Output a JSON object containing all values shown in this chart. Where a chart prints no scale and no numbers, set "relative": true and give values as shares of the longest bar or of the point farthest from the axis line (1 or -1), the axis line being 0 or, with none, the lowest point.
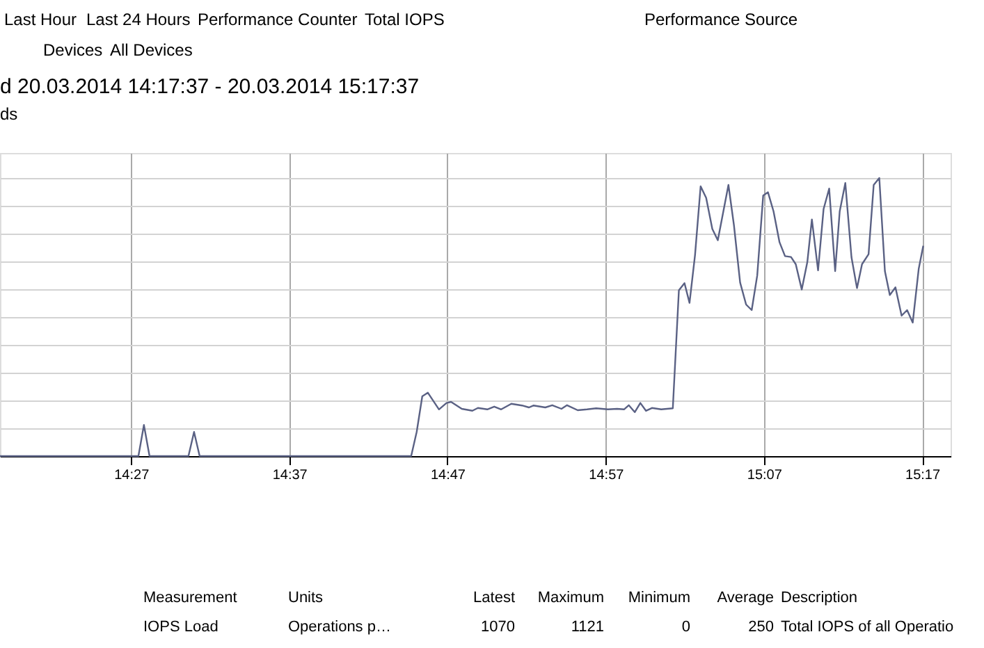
{
  "chart_data": {
    "type": "line",
    "title": "d 20.03.2014 14:17:37 - 20.03.2014 15:17:37",
    "subtitle": "ds",
    "relative": true,
    "grid": true,
    "marker": "none",
    "line_style": "solid",
    "xlim": [
      14.312,
      15.3133
    ],
    "xticks": [
      {
        "value": 14.45,
        "label": "14:27"
      },
      {
        "value": 14.6167,
        "label": "14:37"
      },
      {
        "value": 14.7833,
        "label": "14:47"
      },
      {
        "value": 14.95,
        "label": "14:57"
      },
      {
        "value": 15.1167,
        "label": "15:07"
      },
      {
        "value": 15.2833,
        "label": "15:17"
      }
    ],
    "annotations": [
      "Last Hour",
      "Last 24 Hours",
      "Performance Counter",
      "Total IOPS",
      "Performance Source",
      "Devices",
      "All Devices",
      "Measurement",
      "Units",
      "Latest",
      "Maximum",
      "Minimum",
      "Average",
      "Description",
      "IOPS Load",
      "Operations p…",
      "1070",
      "1121",
      "0",
      "250",
      "Total IOPS of all Operatio"
    ],
    "series": [
      {
        "color": "#5a6184",
        "x": [
          14.312,
          14.4578,
          14.4636,
          14.4695,
          14.5105,
          14.5164,
          14.5223,
          14.7451,
          14.7509,
          14.7568,
          14.7627,
          14.7744,
          14.7823,
          14.7871,
          14.7984,
          14.8096,
          14.8154,
          14.8253,
          14.8326,
          14.8399,
          14.8506,
          14.8619,
          14.8692,
          14.8741,
          14.8864,
          14.8937,
          14.9034,
          14.9093,
          14.9205,
          14.9304,
          14.94,
          14.9523,
          14.962,
          14.9693,
          14.9743,
          14.9806,
          14.9865,
          14.9924,
          14.9987,
          15.0085,
          15.0207,
          15.0271,
          15.033,
          15.0383,
          15.0441,
          15.05,
          15.0558,
          15.0623,
          15.0681,
          15.0744,
          15.0793,
          15.0851,
          15.0916,
          15.0979,
          15.1038,
          15.1096,
          15.1159,
          15.1209,
          15.1268,
          15.1331,
          15.1389,
          15.1452,
          15.1502,
          15.1565,
          15.1624,
          15.1672,
          15.1737,
          15.1795,
          15.1854,
          15.1917,
          15.1965,
          15.2024,
          15.2089,
          15.2147,
          15.22,
          15.2269,
          15.2323,
          15.2382,
          15.2441,
          15.2493,
          15.2552,
          15.2617,
          15.2675,
          15.2734,
          15.2797,
          15.2845
        ],
        "values": [
          0,
          0,
          0.112,
          0,
          0,
          0.087,
          0,
          0,
          0.087,
          0.215,
          0.228,
          0.168,
          0.191,
          0.195,
          0.17,
          0.163,
          0.173,
          0.168,
          0.178,
          0.168,
          0.188,
          0.182,
          0.175,
          0.182,
          0.175,
          0.183,
          0.17,
          0.183,
          0.165,
          0.168,
          0.172,
          0.168,
          0.17,
          0.168,
          0.183,
          0.158,
          0.191,
          0.163,
          0.173,
          0.168,
          0.172,
          0.596,
          0.622,
          0.551,
          0.723,
          0.97,
          0.929,
          0.817,
          0.776,
          0.888,
          0.975,
          0.83,
          0.624,
          0.545,
          0.525,
          0.649,
          0.937,
          0.949,
          0.88,
          0.769,
          0.719,
          0.716,
          0.69,
          0.599,
          0.698,
          0.851,
          0.668,
          0.888,
          0.962,
          0.665,
          0.88,
          0.982,
          0.715,
          0.604,
          0.69,
          0.726,
          0.975,
          1.0,
          0.665,
          0.579,
          0.607,
          0.505,
          0.525,
          0.48,
          0.673,
          0.756
        ]
      }
    ]
  }
}
